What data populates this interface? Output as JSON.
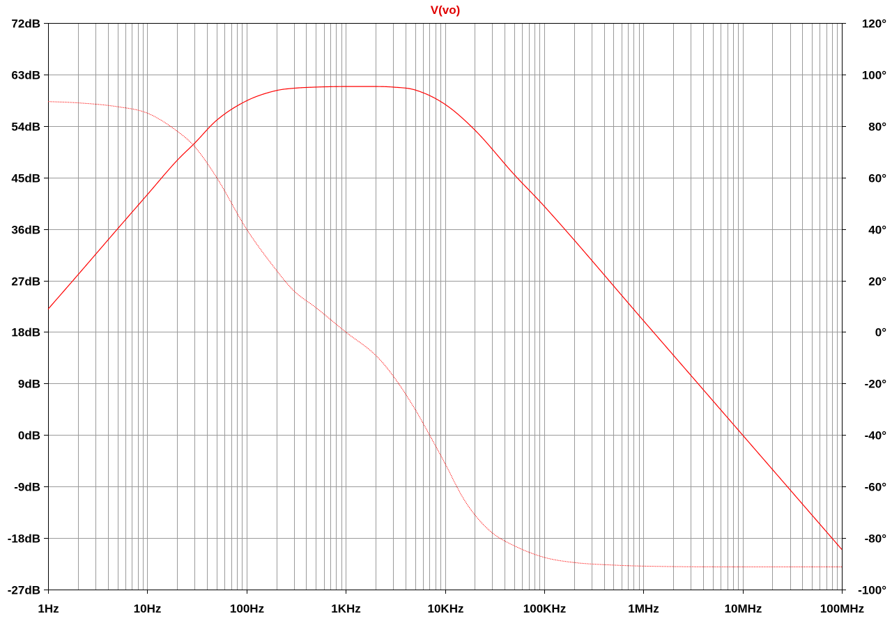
{
  "chart_data": {
    "type": "line",
    "title": "V(vo)",
    "x_scale": "log",
    "xlim": [
      1,
      100000000
    ],
    "x_ticks": [
      {
        "value": 1,
        "label": "1Hz"
      },
      {
        "value": 10,
        "label": "10Hz"
      },
      {
        "value": 100,
        "label": "100Hz"
      },
      {
        "value": 1000,
        "label": "1KHz"
      },
      {
        "value": 10000,
        "label": "10KHz"
      },
      {
        "value": 100000,
        "label": "100KHz"
      },
      {
        "value": 1000000,
        "label": "1MHz"
      },
      {
        "value": 10000000,
        "label": "10MHz"
      },
      {
        "value": 100000000,
        "label": "100MHz"
      }
    ],
    "y_left": {
      "unit": "dB",
      "ylim": [
        -27,
        72
      ],
      "ticks": [
        {
          "value": 72,
          "label": "72dB"
        },
        {
          "value": 63,
          "label": "63dB"
        },
        {
          "value": 54,
          "label": "54dB"
        },
        {
          "value": 45,
          "label": "45dB"
        },
        {
          "value": 36,
          "label": "36dB"
        },
        {
          "value": 27,
          "label": "27dB"
        },
        {
          "value": 18,
          "label": "18dB"
        },
        {
          "value": 9,
          "label": "9dB"
        },
        {
          "value": 0,
          "label": "0dB"
        },
        {
          "value": -9,
          "label": "-9dB"
        },
        {
          "value": -18,
          "label": "-18dB"
        },
        {
          "value": -27,
          "label": "-27dB"
        }
      ]
    },
    "y_right": {
      "unit": "degrees",
      "ylim": [
        -100,
        120
      ],
      "ticks": [
        {
          "value": 120,
          "label": "120°"
        },
        {
          "value": 100,
          "label": "100°"
        },
        {
          "value": 80,
          "label": "80°"
        },
        {
          "value": 60,
          "label": "60°"
        },
        {
          "value": 40,
          "label": "40°"
        },
        {
          "value": 20,
          "label": "20°"
        },
        {
          "value": 0,
          "label": "0°"
        },
        {
          "value": -20,
          "label": "-20°"
        },
        {
          "value": -40,
          "label": "-40°"
        },
        {
          "value": -60,
          "label": "-60°"
        },
        {
          "value": -80,
          "label": "-80°"
        },
        {
          "value": -100,
          "label": "-100°"
        }
      ]
    },
    "grid": true,
    "series": [
      {
        "axis": "left",
        "style": "solid",
        "x": [
          1,
          2,
          5,
          10,
          20,
          30,
          50,
          100,
          200,
          300,
          500,
          1000,
          2000,
          3000,
          5000,
          10000,
          20000,
          50000,
          100000,
          1000000,
          10000000,
          100000000
        ],
        "values": [
          22,
          28,
          36,
          42,
          48,
          51,
          55,
          58.4,
          60.2,
          60.6,
          60.8,
          60.9,
          60.9,
          60.8,
          60.3,
          57.8,
          53.3,
          45.5,
          40,
          20,
          0,
          -20
        ]
      },
      {
        "axis": "right",
        "style": "dotted",
        "x": [
          1,
          2,
          5,
          10,
          20,
          30,
          50,
          100,
          200,
          300,
          500,
          1000,
          2000,
          3000,
          5000,
          7000,
          10000,
          15000,
          20000,
          30000,
          50000,
          100000,
          200000,
          500000,
          1000000,
          10000000,
          100000000
        ],
        "values": [
          89.5,
          89,
          87.5,
          85,
          78,
          72,
          60,
          40,
          24,
          16,
          9.5,
          0,
          -9,
          -17,
          -30,
          -40,
          -51,
          -64,
          -71,
          -78,
          -83,
          -87.5,
          -89.5,
          -90.5,
          -90.9,
          -91.2,
          -91.2
        ]
      }
    ]
  }
}
